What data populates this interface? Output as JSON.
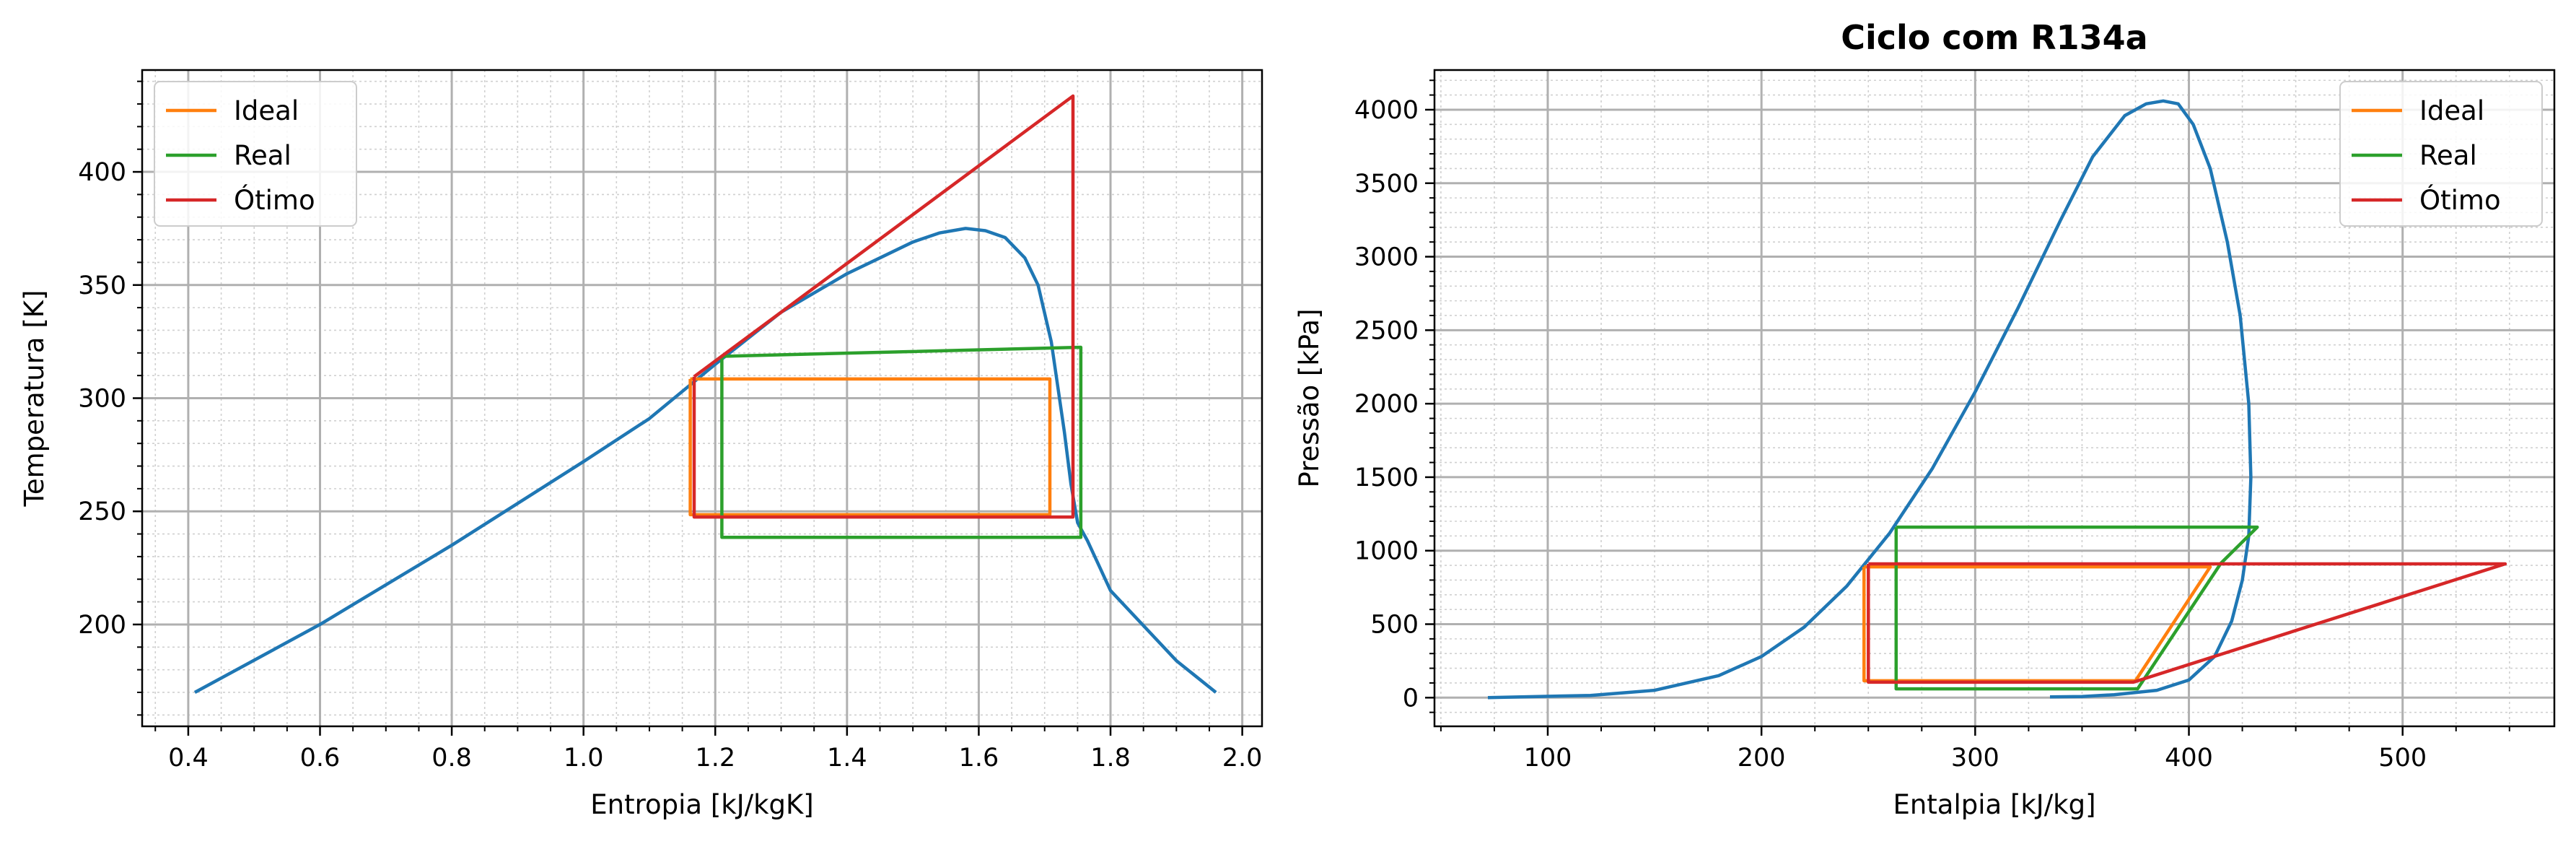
{
  "chart_data": [
    {
      "type": "line",
      "title": "",
      "xlabel": "Entropia [kJ/kgK]",
      "ylabel": "Temperatura [K]",
      "xlim": [
        0.33,
        2.03
      ],
      "ylim": [
        155,
        445
      ],
      "xticks": [
        0.4,
        0.6,
        0.8,
        1.0,
        1.2,
        1.4,
        1.6,
        1.8,
        2.0
      ],
      "xtick_labels": [
        "0.4",
        "0.6",
        "0.8",
        "1.0",
        "1.2",
        "1.4",
        "1.6",
        "1.8",
        "2.0"
      ],
      "yticks": [
        200,
        250,
        300,
        350,
        400
      ],
      "ytick_labels": [
        "200",
        "250",
        "300",
        "350",
        "400"
      ],
      "grid": true,
      "legend_position": "top-left",
      "series": [
        {
          "name": "",
          "color": "#1f77b4",
          "x": [
            0.41,
            0.6,
            0.8,
            1.0,
            1.1,
            1.2,
            1.3,
            1.4,
            1.45,
            1.5,
            1.54,
            1.58,
            1.61,
            1.64,
            1.67,
            1.69,
            1.71,
            1.72,
            1.73,
            1.74,
            1.75,
            1.765,
            1.8,
            1.9,
            1.96
          ],
          "y": [
            170,
            200,
            235,
            272,
            291,
            315,
            338,
            355,
            362,
            369,
            373,
            375,
            374,
            371,
            362,
            350,
            325,
            305,
            285,
            262,
            245,
            237,
            215,
            184,
            170
          ]
        },
        {
          "name": "Ideal",
          "color": "#ff7f0e",
          "x": [
            1.162,
            1.708,
            1.708,
            1.162,
            1.162
          ],
          "y": [
            308.5,
            308.5,
            248.5,
            248.5,
            308.5
          ]
        },
        {
          "name": "Real",
          "color": "#2ca02c",
          "x": [
            1.21,
            1.755,
            1.755,
            1.755,
            1.21,
            1.21
          ],
          "y": [
            318.5,
            322.5,
            248.5,
            238.5,
            238.5,
            318.5
          ]
        },
        {
          "name": "Ótimo",
          "color": "#d62728",
          "x": [
            1.168,
            1.743,
            1.743,
            1.168,
            1.168
          ],
          "y": [
            309.5,
            433.5,
            247.5,
            247.5,
            309.5
          ]
        }
      ]
    },
    {
      "type": "line",
      "title": "Ciclo com R134a",
      "xlabel": "Entalpia [kJ/kg]",
      "ylabel": "Pressão [kPa]",
      "xlim": [
        47,
        571
      ],
      "ylim": [
        -195,
        4270
      ],
      "xticks": [
        100,
        200,
        300,
        400,
        500
      ],
      "xtick_labels": [
        "100",
        "200",
        "300",
        "400",
        "500"
      ],
      "yticks": [
        0,
        500,
        1000,
        1500,
        2000,
        2500,
        3000,
        3500,
        4000
      ],
      "ytick_labels": [
        "0",
        "500",
        "1000",
        "1500",
        "2000",
        "2500",
        "3000",
        "3500",
        "4000"
      ],
      "grid": true,
      "legend_position": "top-right",
      "series": [
        {
          "name": "",
          "color": "#1f77b4",
          "x": [
            72,
            120,
            150,
            180,
            200,
            220,
            240,
            260,
            280,
            300,
            320,
            340,
            355,
            370,
            380,
            388,
            395,
            402,
            410,
            418,
            424,
            428,
            429,
            428,
            425,
            420,
            412,
            400,
            385,
            365,
            350,
            335
          ],
          "y": [
            0,
            15,
            50,
            150,
            280,
            480,
            760,
            1120,
            1560,
            2080,
            2650,
            3250,
            3680,
            3960,
            4040,
            4060,
            4040,
            3900,
            3600,
            3100,
            2600,
            2000,
            1500,
            1100,
            800,
            520,
            280,
            120,
            50,
            20,
            8,
            5
          ]
        },
        {
          "name": "Ideal",
          "color": "#ff7f0e",
          "x": [
            248,
            410,
            375,
            248,
            248
          ],
          "y": [
            890,
            890,
            115,
            115,
            890
          ]
        },
        {
          "name": "Real",
          "color": "#2ca02c",
          "x": [
            263,
            432,
            415,
            376,
            263,
            263
          ],
          "y": [
            1160,
            1160,
            915,
            60,
            60,
            1160
          ]
        },
        {
          "name": "Ótimo",
          "color": "#d62728",
          "x": [
            250,
            548,
            374,
            250,
            250
          ],
          "y": [
            910,
            910,
            105,
            105,
            910
          ]
        }
      ]
    }
  ]
}
